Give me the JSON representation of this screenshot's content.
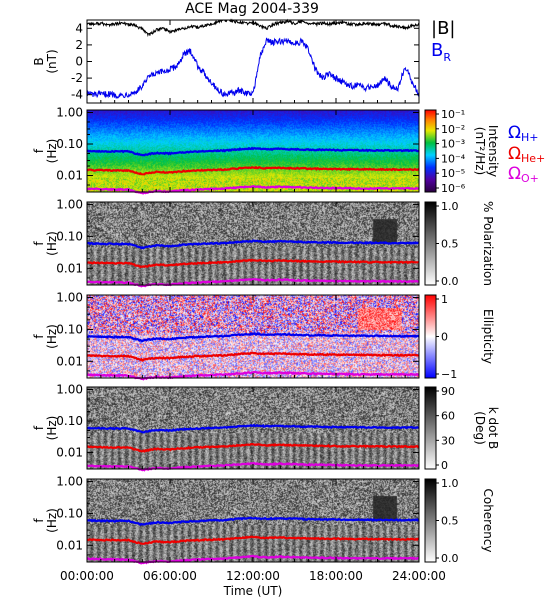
{
  "chart_data": {
    "type": "line",
    "title": "ACE Mag 2004-339",
    "xlabel": "Time (UT)",
    "x_ticks": [
      "00:00:00",
      "06:00:00",
      "12:00:00",
      "18:00:00",
      "24:00:00"
    ],
    "x_range_hours": [
      0,
      24
    ],
    "panels": [
      {
        "id": "field",
        "ylabel_lines": [
          "B",
          "(nT)"
        ],
        "ylim": [
          -5,
          5
        ],
        "y_ticks": [
          "4",
          "2",
          "0",
          "-2",
          "-4"
        ],
        "y_tick_values": [
          4,
          2,
          0,
          -2,
          -4
        ],
        "series": [
          {
            "name": "|B|",
            "color": "#000000",
            "x": [
              0,
              0.5,
              1,
              1.5,
              2,
              2.5,
              3,
              3.5,
              4,
              4.5,
              5,
              5.5,
              6,
              6.5,
              7,
              7.5,
              8,
              8.5,
              9,
              9.5,
              10,
              10.5,
              11,
              11.5,
              12,
              12.5,
              13,
              13.5,
              14,
              14.5,
              15,
              15.5,
              16,
              16.5,
              17,
              17.5,
              18,
              18.5,
              19,
              19.5,
              20,
              20.5,
              21,
              21.5,
              22,
              22.5,
              23,
              23.5,
              24
            ],
            "values": [
              4.6,
              4.5,
              4.6,
              4.4,
              4.5,
              4.6,
              4.5,
              4.3,
              3.9,
              3.2,
              3.8,
              4.0,
              3.6,
              3.8,
              4.0,
              4.2,
              4.1,
              4.3,
              4.5,
              4.8,
              5.0,
              4.9,
              4.7,
              4.6,
              4.7,
              4.3,
              4.0,
              4.5,
              4.7,
              4.8,
              4.6,
              4.8,
              4.6,
              4.5,
              4.6,
              4.5,
              4.6,
              4.7,
              4.5,
              4.4,
              4.6,
              4.5,
              4.4,
              4.6,
              4.3,
              4.2,
              4.0,
              4.3,
              4.4
            ]
          },
          {
            "name": "B_R",
            "color": "#0000ee",
            "x": [
              0,
              0.5,
              1,
              1.5,
              2,
              2.5,
              3,
              3.5,
              4,
              4.5,
              5,
              5.5,
              6,
              6.5,
              7,
              7.5,
              8,
              8.5,
              9,
              9.5,
              10,
              10.5,
              11,
              11.5,
              12,
              12.5,
              13,
              13.5,
              14,
              14.5,
              15,
              15.5,
              16,
              16.5,
              17,
              17.5,
              18,
              18.5,
              19,
              19.5,
              20,
              20.5,
              21,
              21.5,
              22,
              22.5,
              23,
              23.5,
              24
            ],
            "values": [
              -3.8,
              -4.0,
              -4.0,
              -3.9,
              -4.0,
              -4.1,
              -3.9,
              -3.7,
              -3.0,
              -1.8,
              -1.5,
              -1.2,
              -1.0,
              -0.5,
              0.8,
              1.3,
              -0.5,
              -1.5,
              -2.5,
              -3.5,
              -4.0,
              -3.8,
              -3.5,
              -3.8,
              -3.9,
              0.5,
              2.6,
              2.3,
              2.4,
              2.5,
              2.2,
              2.4,
              1.5,
              -1.0,
              -2.0,
              -1.5,
              -2.0,
              -2.5,
              -3.0,
              -2.8,
              -3.2,
              -3.0,
              -2.8,
              -2.0,
              -3.0,
              -3.2,
              -0.5,
              -2.5,
              -4.0
            ]
          }
        ]
      },
      {
        "id": "intensity",
        "ylabel_lines": [
          "f",
          "(Hz)"
        ],
        "colorbar_label_lines": [
          "Intensity",
          "(nT²/Hz)"
        ],
        "colorbar_ticks": [
          "10⁻¹",
          "10⁻²",
          "10⁻³",
          "10⁻⁴",
          "10⁻⁵",
          "10⁻⁶"
        ],
        "colormap": "rainbow"
      },
      {
        "id": "polarization",
        "ylabel_lines": [
          "f",
          "(Hz)"
        ],
        "colorbar_label_lines": [
          "% Polarization"
        ],
        "colorbar_ticks": [
          "1.0",
          "0.5",
          "0.0"
        ],
        "colormap": "gray"
      },
      {
        "id": "ellipticity",
        "ylabel_lines": [
          "f",
          "(Hz)"
        ],
        "colorbar_label_lines": [
          "Ellipticity"
        ],
        "colorbar_ticks": [
          "1",
          "0",
          "−1"
        ],
        "colormap": "bwr"
      },
      {
        "id": "kdotb",
        "ylabel_lines": [
          "f",
          "(Hz)"
        ],
        "colorbar_label_lines": [
          "k dot B",
          "(Deg)"
        ],
        "colorbar_ticks": [
          "90",
          "60",
          "30",
          "0"
        ],
        "colormap": "gray"
      },
      {
        "id": "coherency",
        "ylabel_lines": [
          "f",
          "(Hz)"
        ],
        "colorbar_label_lines": [
          "Coherency"
        ],
        "colorbar_ticks": [
          "1.0",
          "0.5",
          "0.0"
        ],
        "colormap": "gray"
      }
    ],
    "freq_axis": {
      "scale": "log",
      "ylim": [
        0.003,
        1.2
      ],
      "y_ticks": [
        "1.00",
        "0.10",
        "0.01"
      ],
      "y_tick_values": [
        1.0,
        0.1,
        0.01
      ]
    },
    "gyrofrequencies": [
      {
        "name": "ΩH+",
        "color": "#0000ee",
        "x": [
          0,
          2,
          3,
          3.5,
          4,
          5,
          6,
          7,
          8,
          10,
          11,
          12,
          13,
          14,
          16,
          18,
          20,
          22,
          24
        ],
        "values": [
          0.06,
          0.058,
          0.058,
          0.05,
          0.044,
          0.052,
          0.05,
          0.055,
          0.058,
          0.062,
          0.068,
          0.072,
          0.068,
          0.07,
          0.066,
          0.064,
          0.063,
          0.062,
          0.062
        ]
      },
      {
        "name": "ΩHe+",
        "color": "#ee0000",
        "x": [
          0,
          2,
          3,
          3.5,
          4,
          5,
          6,
          7,
          8,
          10,
          11,
          12,
          13,
          14,
          16,
          18,
          20,
          22,
          24
        ],
        "values": [
          0.015,
          0.0145,
          0.0145,
          0.0125,
          0.011,
          0.013,
          0.0125,
          0.0138,
          0.0145,
          0.0155,
          0.017,
          0.018,
          0.017,
          0.0175,
          0.0165,
          0.016,
          0.0158,
          0.0155,
          0.0155
        ]
      },
      {
        "name": "ΩO+",
        "color": "#dd00dd",
        "x": [
          0,
          2,
          3,
          3.5,
          4,
          5,
          6,
          7,
          8,
          10,
          11,
          12,
          13,
          14,
          16,
          18,
          20,
          22,
          24
        ],
        "values": [
          0.0038,
          0.0036,
          0.0036,
          0.0031,
          0.0028,
          0.0032,
          0.0031,
          0.0034,
          0.0036,
          0.0039,
          0.0042,
          0.0045,
          0.0042,
          0.0044,
          0.0041,
          0.004,
          0.0039,
          0.0039,
          0.0039
        ]
      }
    ],
    "grid": false,
    "legend_position": "right"
  },
  "legend": {
    "b_mag": "|B|",
    "b_r_main": "B",
    "b_r_sub": "R",
    "omega": "Ω",
    "h_sub": "H+",
    "he_sub": "He+",
    "o_sub": "O+"
  }
}
